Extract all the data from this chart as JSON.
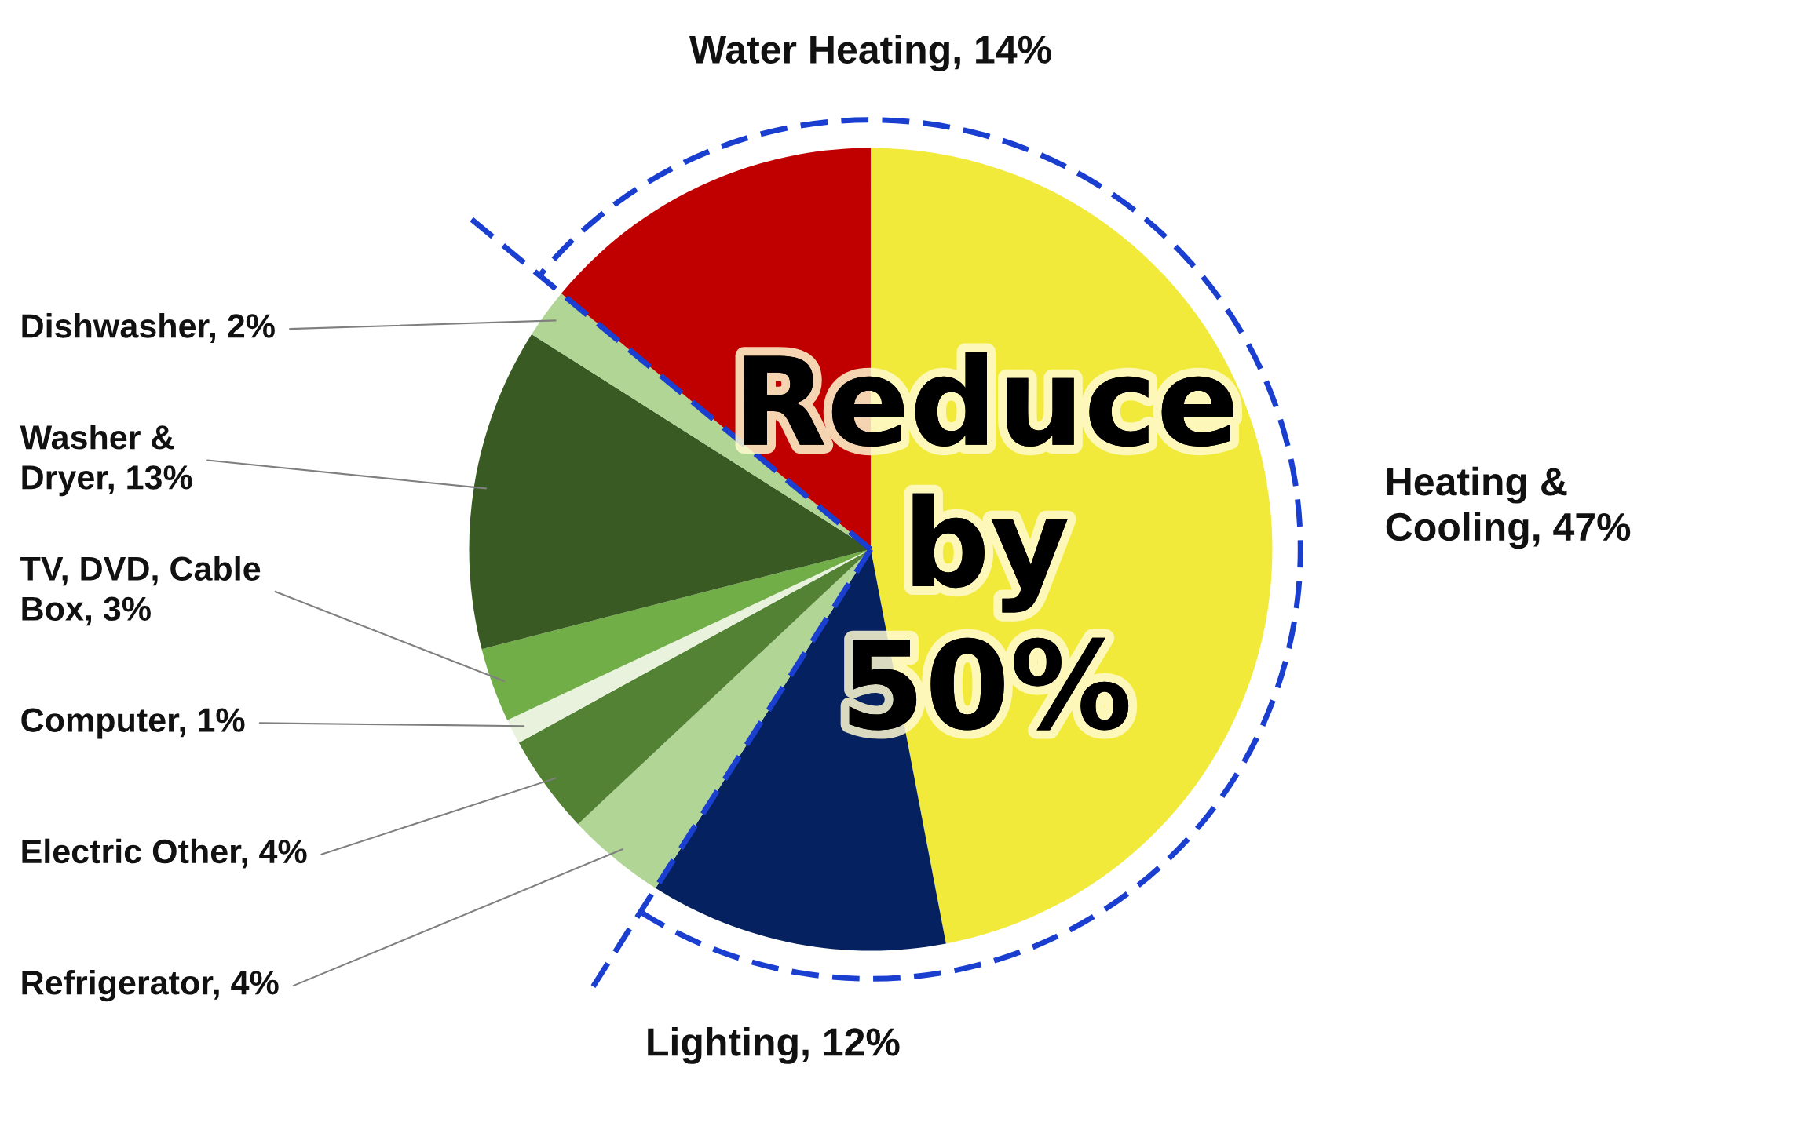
{
  "chart_data": {
    "type": "pie",
    "categories": [
      "Heating &\nCooling",
      "Lighting",
      "Refrigerator",
      "Electric Other",
      "Computer",
      "TV, DVD, Cable\nBox",
      "Washer &\nDryer",
      "Dishwasher",
      "Water Heating"
    ],
    "values": [
      47,
      12,
      4,
      4,
      1,
      3,
      13,
      2,
      14
    ],
    "value_labels": [
      "47%",
      "12%",
      "4%",
      "4%",
      "1%",
      "3%",
      "13%",
      "2%",
      "14%"
    ],
    "colors": [
      "#f2ea3a",
      "#052160",
      "#b0d595",
      "#548235",
      "#e8f2dd",
      "#71ae48",
      "#3a5a23",
      "#b0d595",
      "#c00000"
    ],
    "annotations": [
      "Reduce\nby\n50%"
    ]
  }
}
